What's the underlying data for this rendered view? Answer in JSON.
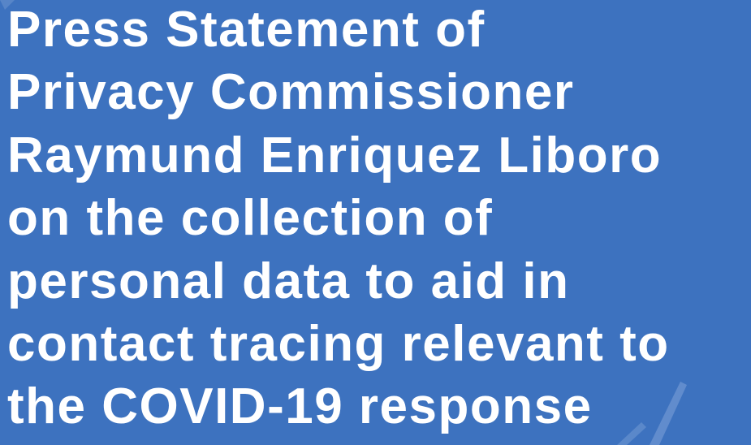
{
  "title_lines": [
    "Press Statement of",
    "Privacy Commissioner",
    "Raymund Enriquez Liboro",
    "on the collection of",
    "personal data to aid in",
    "contact tracing relevant to",
    "the COVID-19 response"
  ]
}
